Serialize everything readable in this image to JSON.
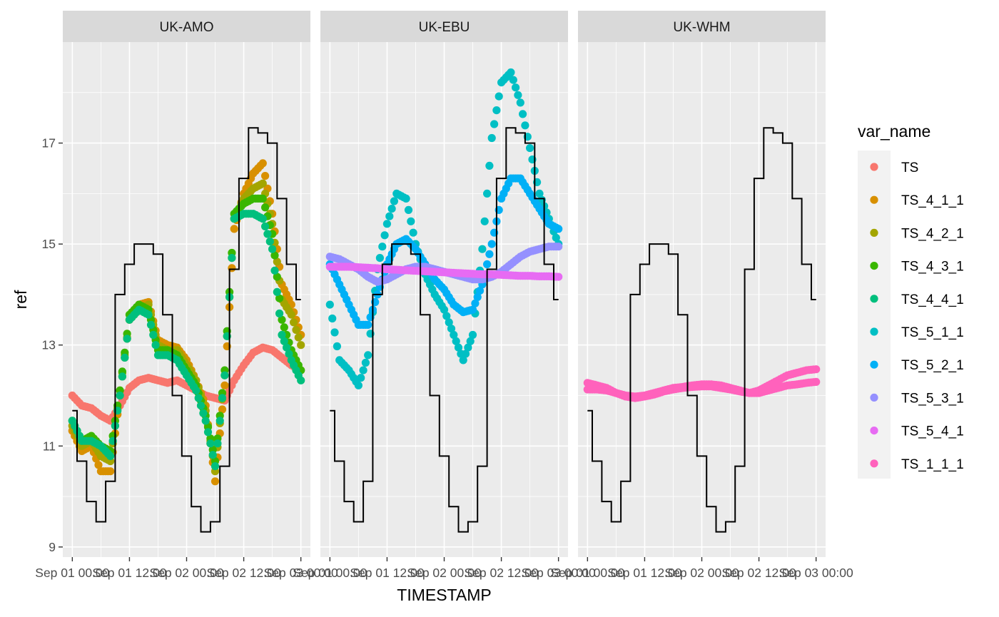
{
  "chart_data": {
    "type": "scatter",
    "xlabel": "TIMESTAMP",
    "ylabel": "ref",
    "ylim": [
      8.8,
      19.0
    ],
    "y_ticks": [
      9,
      11,
      13,
      15,
      17
    ],
    "x_tick_labels": [
      "Sep 01 00:00",
      "Sep 01 12:00",
      "Sep 02 00:00",
      "Sep 02 12:00",
      "Sep 03 00:00"
    ],
    "x_ticks_hours": [
      0,
      12,
      24,
      36,
      48
    ],
    "xlim_hours": [
      -2,
      50
    ],
    "legend": {
      "title": "var_name",
      "position": "right",
      "items": [
        {
          "label": "TS",
          "color": "#F8766D"
        },
        {
          "label": "TS_4_1_1",
          "color": "#D89000"
        },
        {
          "label": "TS_4_2_1",
          "color": "#A3A500"
        },
        {
          "label": "TS_4_3_1",
          "color": "#39B600"
        },
        {
          "label": "TS_4_4_1",
          "color": "#00BF7D"
        },
        {
          "label": "TS_5_1_1",
          "color": "#00BFC4"
        },
        {
          "label": "TS_5_2_1",
          "color": "#00B0F6"
        },
        {
          "label": "TS_5_3_1",
          "color": "#9590FF"
        },
        {
          "label": "TS_5_4_1",
          "color": "#E76BF3"
        },
        {
          "label": "TS_1_1_1",
          "color": "#FF62BC"
        }
      ]
    },
    "ref_line": {
      "name": "ref",
      "color": "#000000",
      "x_hours": [
        0,
        2,
        4,
        6,
        8,
        10,
        12,
        14,
        16,
        18,
        20,
        22,
        24,
        26,
        28,
        30,
        32,
        34,
        36,
        38,
        40,
        42,
        44,
        46,
        48
      ],
      "values": [
        11.7,
        10.7,
        9.9,
        9.5,
        10.3,
        14.0,
        14.6,
        15.0,
        15.0,
        14.8,
        13.6,
        12.0,
        10.8,
        9.8,
        9.3,
        9.5,
        10.6,
        14.5,
        16.3,
        17.3,
        17.2,
        17.0,
        15.9,
        14.6,
        13.9
      ]
    },
    "facets": [
      {
        "title": "UK-AMO",
        "series": [
          {
            "name": "TS",
            "x_hours": [
              0,
              2,
              4,
              6,
              8,
              10,
              12,
              14,
              16,
              18,
              20,
              22,
              24,
              26,
              28,
              30,
              32,
              34,
              36,
              38,
              40,
              42,
              44,
              46,
              48
            ],
            "values": [
              12.0,
              11.8,
              11.75,
              11.6,
              11.5,
              11.8,
              12.15,
              12.3,
              12.35,
              12.3,
              12.25,
              12.3,
              12.2,
              12.1,
              12.0,
              11.95,
              11.9,
              12.3,
              12.6,
              12.85,
              12.95,
              12.9,
              12.75,
              12.6,
              12.5
            ]
          },
          {
            "name": "TS_4_1_1",
            "x_hours": [
              0,
              2,
              4,
              6,
              8,
              10,
              12,
              14,
              16,
              18,
              20,
              22,
              24,
              26,
              28,
              30,
              32,
              34,
              36,
              38,
              40,
              42,
              44,
              46,
              48
            ],
            "values": [
              11.3,
              10.9,
              11.0,
              10.5,
              10.5,
              12.0,
              13.5,
              13.8,
              13.85,
              13.1,
              13.0,
              12.95,
              12.7,
              12.3,
              11.8,
              10.3,
              12.2,
              15.3,
              16.0,
              16.4,
              16.6,
              15.6,
              14.2,
              13.8,
              13.2
            ]
          },
          {
            "name": "TS_4_2_1",
            "x_hours": [
              0,
              2,
              4,
              6,
              8,
              10,
              12,
              14,
              16,
              18,
              20,
              22,
              24,
              26,
              28,
              30,
              32,
              34,
              36,
              38,
              40,
              42,
              44,
              46,
              48
            ],
            "values": [
              11.4,
              11.0,
              11.1,
              10.8,
              10.7,
              12.1,
              13.5,
              13.7,
              13.8,
              13.0,
              12.9,
              12.9,
              12.6,
              12.3,
              11.7,
              10.5,
              12.4,
              15.5,
              15.9,
              16.1,
              16.2,
              15.4,
              13.9,
              13.6,
              13.0
            ]
          },
          {
            "name": "TS_4_3_1",
            "x_hours": [
              0,
              2,
              4,
              6,
              8,
              10,
              12,
              14,
              16,
              18,
              20,
              22,
              24,
              26,
              28,
              30,
              32,
              34,
              36,
              38,
              40,
              42,
              44,
              46,
              48
            ],
            "values": [
              11.5,
              11.1,
              11.2,
              11.0,
              10.9,
              12.1,
              13.6,
              13.8,
              13.7,
              12.9,
              12.9,
              12.8,
              12.5,
              12.2,
              11.6,
              10.7,
              12.5,
              15.6,
              15.8,
              15.9,
              15.9,
              15.2,
              13.5,
              12.9,
              12.5
            ]
          },
          {
            "name": "TS_4_4_1",
            "x_hours": [
              0,
              2,
              4,
              6,
              8,
              10,
              12,
              14,
              16,
              18,
              20,
              22,
              24,
              26,
              28,
              30,
              32,
              34,
              36,
              38,
              40,
              42,
              44,
              46,
              48
            ],
            "values": [
              11.5,
              11.1,
              11.1,
              11.0,
              10.8,
              12.0,
              13.5,
              13.7,
              13.6,
              12.8,
              12.8,
              12.7,
              12.4,
              12.1,
              11.5,
              10.6,
              12.4,
              15.5,
              15.6,
              15.6,
              15.5,
              14.9,
              13.2,
              12.7,
              12.3
            ]
          }
        ]
      },
      {
        "title": "UK-EBU",
        "series": [
          {
            "name": "TS_5_1_1",
            "x_hours": [
              0,
              2,
              4,
              6,
              8,
              10,
              12,
              14,
              16,
              18,
              20,
              22,
              24,
              26,
              28,
              30,
              32,
              34,
              36,
              38,
              40,
              42,
              44,
              46,
              48
            ],
            "values": [
              13.8,
              12.7,
              12.5,
              12.2,
              12.8,
              14.5,
              15.4,
              16.0,
              15.9,
              15.0,
              14.4,
              14.0,
              13.7,
              13.2,
              12.7,
              13.2,
              14.9,
              17.1,
              18.2,
              18.4,
              17.8,
              16.9,
              16.0,
              15.5,
              15.0
            ]
          },
          {
            "name": "TS_5_2_1",
            "x_hours": [
              0,
              2,
              4,
              6,
              8,
              10,
              12,
              14,
              16,
              18,
              20,
              22,
              24,
              26,
              28,
              30,
              32,
              34,
              36,
              38,
              40,
              42,
              44,
              46,
              48
            ],
            "values": [
              14.6,
              14.2,
              13.8,
              13.4,
              13.4,
              14.0,
              14.6,
              15.0,
              15.1,
              14.9,
              14.6,
              14.3,
              14.1,
              13.8,
              13.65,
              13.7,
              14.2,
              15.0,
              15.9,
              16.3,
              16.3,
              16.0,
              15.7,
              15.4,
              15.3
            ]
          },
          {
            "name": "TS_5_3_1",
            "x_hours": [
              0,
              2,
              4,
              6,
              8,
              10,
              12,
              14,
              16,
              18,
              20,
              22,
              24,
              26,
              28,
              30,
              32,
              34,
              36,
              38,
              40,
              42,
              44,
              46,
              48
            ],
            "values": [
              14.75,
              14.7,
              14.6,
              14.5,
              14.35,
              14.25,
              14.3,
              14.4,
              14.5,
              14.55,
              14.55,
              14.5,
              14.45,
              14.4,
              14.35,
              14.3,
              14.3,
              14.35,
              14.45,
              14.6,
              14.75,
              14.85,
              14.9,
              14.95,
              14.95
            ]
          },
          {
            "name": "TS_5_4_1",
            "x_hours": [
              0,
              2,
              4,
              6,
              8,
              10,
              12,
              14,
              16,
              18,
              20,
              22,
              24,
              26,
              28,
              30,
              32,
              34,
              36,
              38,
              40,
              42,
              44,
              46,
              48
            ],
            "values": [
              14.55,
              14.55,
              14.55,
              14.54,
              14.53,
              14.52,
              14.5,
              14.49,
              14.48,
              14.47,
              14.46,
              14.45,
              14.44,
              14.43,
              14.42,
              14.41,
              14.4,
              14.4,
              14.39,
              14.38,
              14.37,
              14.37,
              14.36,
              14.36,
              14.35
            ]
          }
        ]
      },
      {
        "title": "UK-WHM",
        "series": [
          {
            "name": "TS_1_1_1",
            "x_hours": [
              0,
              2,
              4,
              6,
              8,
              10,
              12,
              14,
              16,
              18,
              20,
              22,
              24,
              26,
              28,
              30,
              32,
              34,
              36,
              38,
              40,
              42,
              44,
              46,
              48
            ],
            "values": [
              12.25,
              12.2,
              12.15,
              12.05,
              12.0,
              11.98,
              12.0,
              12.05,
              12.1,
              12.15,
              12.17,
              12.2,
              12.22,
              12.22,
              12.2,
              12.15,
              12.1,
              12.05,
              12.05,
              12.1,
              12.15,
              12.2,
              12.22,
              12.25,
              12.27
            ]
          },
          {
            "name": "TS_1_1_1",
            "x_hours": [
              0,
              2,
              4,
              6,
              8,
              10,
              12,
              14,
              16,
              18,
              20,
              22,
              24,
              26,
              28,
              30,
              32,
              34,
              36,
              38,
              40,
              42,
              44,
              46,
              48
            ],
            "values": [
              12.12,
              12.12,
              12.1,
              12.05,
              11.98,
              11.95,
              11.98,
              12.02,
              12.08,
              12.12,
              12.15,
              12.17,
              12.18,
              12.18,
              12.15,
              12.12,
              12.08,
              12.05,
              12.1,
              12.2,
              12.3,
              12.4,
              12.45,
              12.5,
              12.52
            ]
          }
        ]
      }
    ]
  }
}
